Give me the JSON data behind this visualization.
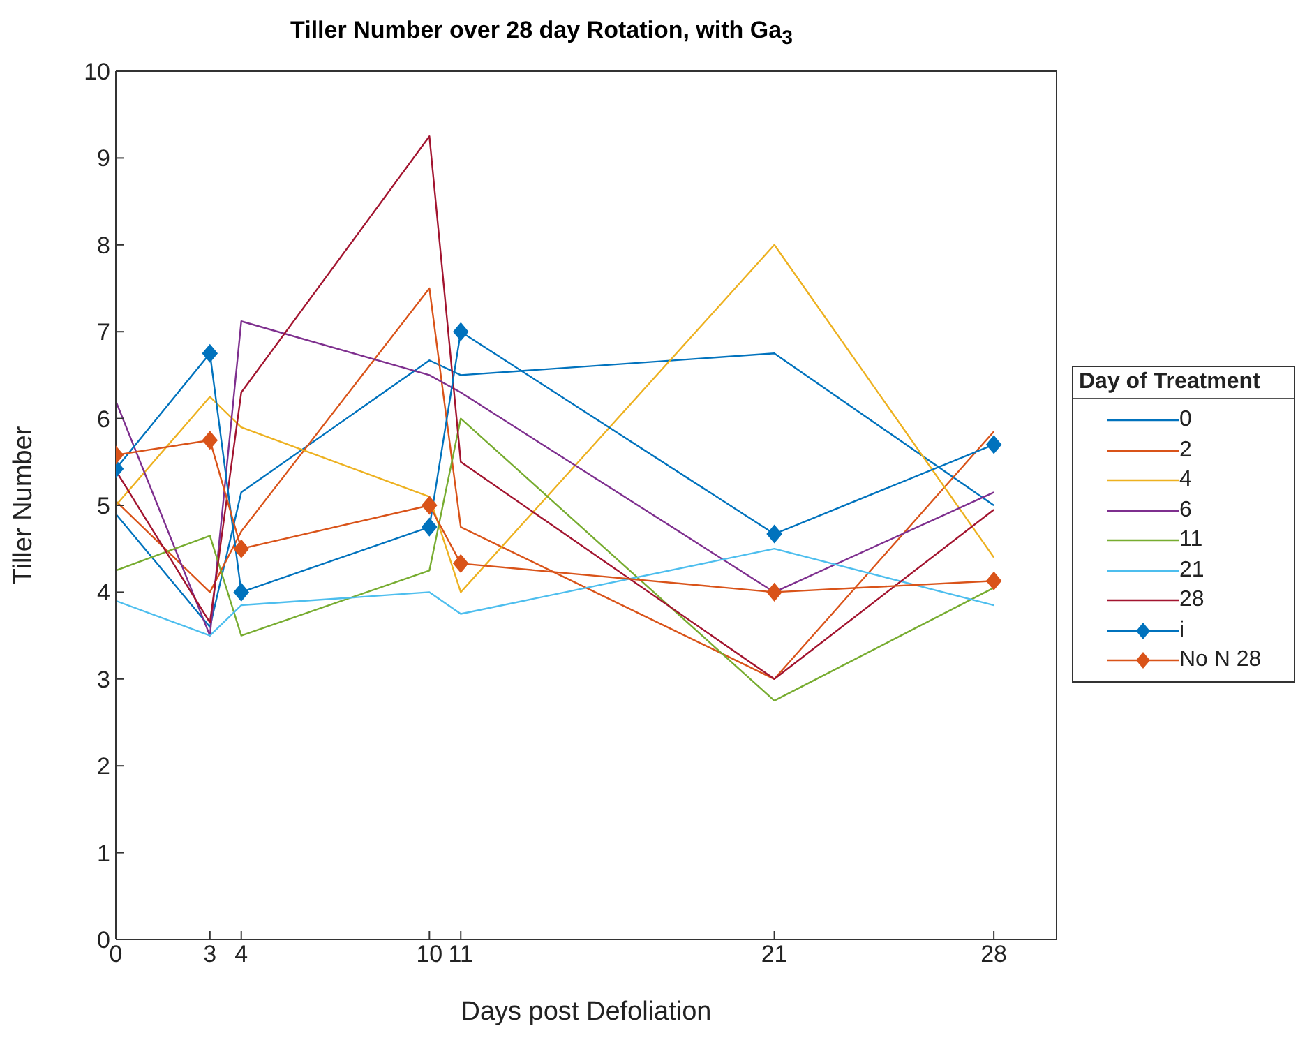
{
  "chart_data": {
    "type": "line",
    "title": "Tiller Number over 28 day Rotation, with Ga$_{3}$",
    "xlabel": "Days post Defoliation",
    "ylabel": "Tiller Number",
    "legend_title": "Day of Treatment",
    "legend": "right",
    "line_style": "solid",
    "marker": "none",
    "x": [
      0,
      3,
      4,
      10,
      11,
      21,
      28
    ],
    "xlim": [
      0,
      30
    ],
    "xticks": [
      0,
      3,
      4,
      10,
      11,
      21,
      28
    ],
    "ylim": [
      0,
      10
    ],
    "yticks": [
      0,
      1,
      2,
      3,
      4,
      5,
      6,
      7,
      8,
      9,
      10
    ],
    "series": [
      {
        "name": "0",
        "color": "#0072bd",
        "values": [
          4.9,
          3.6,
          5.15,
          6.67,
          6.5,
          6.75,
          5.0
        ]
      },
      {
        "name": "2",
        "color": "#d95319",
        "values": [
          5.05,
          4.0,
          4.7,
          7.5,
          4.75,
          3.0,
          5.85
        ]
      },
      {
        "name": "4",
        "color": "#edb120",
        "values": [
          5.0,
          6.25,
          5.9,
          5.1,
          4.0,
          8.0,
          4.4
        ]
      },
      {
        "name": "6",
        "color": "#7e2f8e",
        "values": [
          6.2,
          3.5,
          7.12,
          6.5,
          6.3,
          4.0,
          5.15
        ]
      },
      {
        "name": "11",
        "color": "#77ac30",
        "values": [
          4.25,
          4.65,
          3.5,
          4.25,
          6.0,
          2.75,
          4.05
        ]
      },
      {
        "name": "21",
        "color": "#4dbeee",
        "values": [
          3.9,
          3.5,
          3.85,
          4.0,
          3.75,
          4.5,
          3.85
        ]
      },
      {
        "name": "28",
        "color": "#a2142f",
        "values": [
          5.4,
          3.65,
          6.3,
          9.25,
          5.5,
          3.0,
          4.95
        ]
      },
      {
        "name": "i",
        "color": "#0072bd",
        "marker": "diamond",
        "values": [
          5.42,
          6.75,
          4.0,
          4.75,
          7.0,
          4.67,
          5.7
        ]
      },
      {
        "name": "No N 28",
        "color": "#d95319",
        "marker": "diamond",
        "values": [
          5.58,
          5.75,
          4.5,
          5.0,
          4.33,
          4.0,
          4.13
        ]
      }
    ]
  }
}
